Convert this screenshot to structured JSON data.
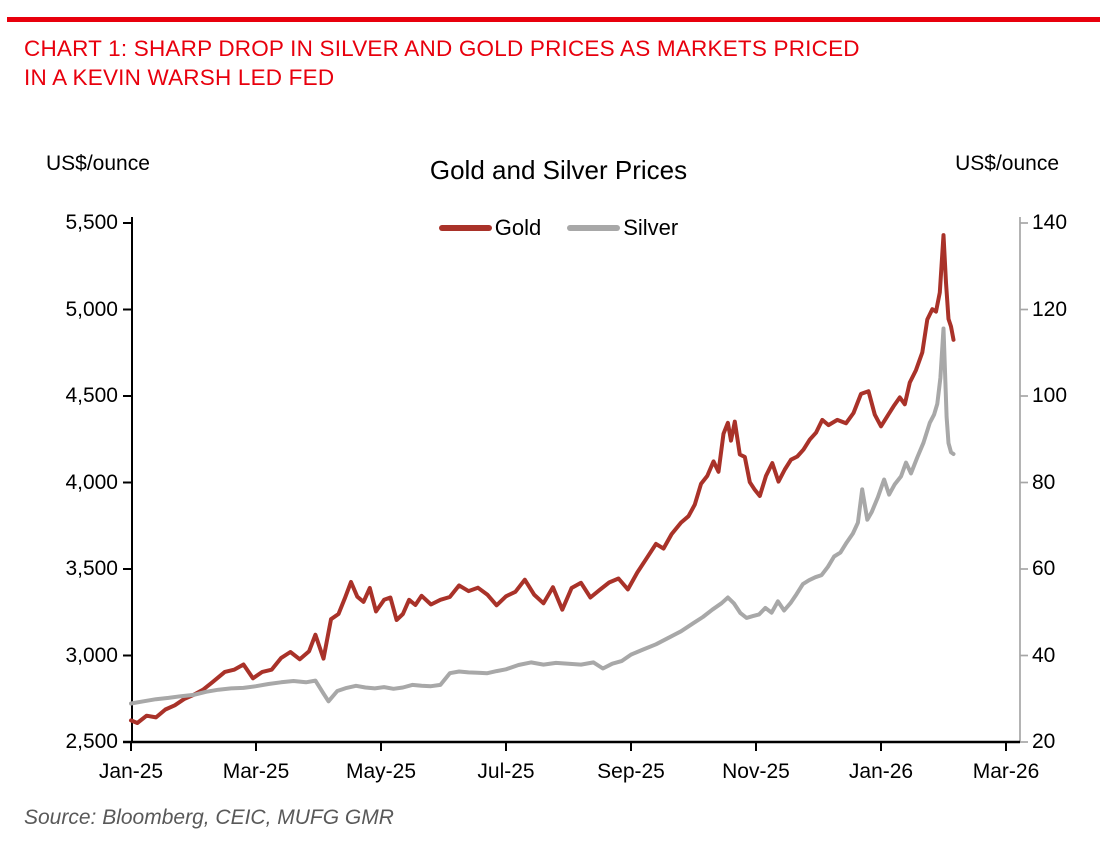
{
  "header": {
    "title_line1": "CHART 1: SHARP DROP IN SILVER AND GOLD PRICES AS MARKETS PRICED",
    "title_line2": "IN A KEVIN WARSH LED FED",
    "accent_color": "#E8000D"
  },
  "source_note": "Source: Bloomberg, CEIC, MUFG GMR",
  "chart_data": {
    "type": "line",
    "title": "Gold and Silver Prices",
    "grid": "off",
    "legend_position": "top-center",
    "y_left_axis": {
      "unit_label": "US$/ounce",
      "ylim": [
        2500,
        5500
      ],
      "tick_values": [
        2500,
        3000,
        3500,
        4000,
        4500,
        5000,
        5500
      ],
      "tick_labels": [
        "2,500",
        "3,000",
        "3,500",
        "4,000",
        "4,500",
        "5,000",
        "5,500"
      ],
      "axis_color": "#000000"
    },
    "y_right_axis": {
      "unit_label": "US$/ounce",
      "ylim": [
        20,
        140
      ],
      "tick_values": [
        20,
        40,
        60,
        80,
        100,
        120,
        140
      ],
      "tick_labels": [
        "20",
        "40",
        "60",
        "80",
        "100",
        "120",
        "140"
      ],
      "axis_color": "#A6A6A6"
    },
    "x_axis": {
      "xlim_months": [
        0,
        14
      ],
      "tick_month_positions": [
        0,
        2,
        4,
        6,
        8,
        10,
        12,
        14
      ],
      "tick_labels": [
        "Jan-25",
        "Mar-25",
        "May-25",
        "Jul-25",
        "Sep-25",
        "Nov-25",
        "Jan-26",
        "Mar-26"
      ],
      "axis_color": "#000000"
    },
    "series": [
      {
        "name": "Gold",
        "axis": "left",
        "color": "#A93229",
        "points": [
          [
            0,
            2625
          ],
          [
            0.1,
            2610
          ],
          [
            0.25,
            2652
          ],
          [
            0.4,
            2642
          ],
          [
            0.55,
            2688
          ],
          [
            0.7,
            2712
          ],
          [
            0.85,
            2748
          ],
          [
            1,
            2772
          ],
          [
            1.15,
            2802
          ],
          [
            1.3,
            2845
          ],
          [
            1.5,
            2905
          ],
          [
            1.65,
            2918
          ],
          [
            1.8,
            2948
          ],
          [
            1.95,
            2868
          ],
          [
            2.1,
            2905
          ],
          [
            2.25,
            2918
          ],
          [
            2.4,
            2985
          ],
          [
            2.55,
            3020
          ],
          [
            2.7,
            2978
          ],
          [
            2.85,
            3025
          ],
          [
            2.95,
            3120
          ],
          [
            3.08,
            2982
          ],
          [
            3.2,
            3210
          ],
          [
            3.32,
            3240
          ],
          [
            3.42,
            3330
          ],
          [
            3.52,
            3425
          ],
          [
            3.62,
            3340
          ],
          [
            3.72,
            3310
          ],
          [
            3.82,
            3390
          ],
          [
            3.92,
            3255
          ],
          [
            4.05,
            3322
          ],
          [
            4.15,
            3335
          ],
          [
            4.25,
            3205
          ],
          [
            4.35,
            3240
          ],
          [
            4.45,
            3322
          ],
          [
            4.55,
            3292
          ],
          [
            4.65,
            3345
          ],
          [
            4.8,
            3295
          ],
          [
            4.95,
            3322
          ],
          [
            5.1,
            3338
          ],
          [
            5.25,
            3405
          ],
          [
            5.4,
            3372
          ],
          [
            5.55,
            3392
          ],
          [
            5.7,
            3352
          ],
          [
            5.85,
            3290
          ],
          [
            6,
            3342
          ],
          [
            6.15,
            3368
          ],
          [
            6.3,
            3438
          ],
          [
            6.45,
            3352
          ],
          [
            6.6,
            3302
          ],
          [
            6.75,
            3395
          ],
          [
            6.9,
            3265
          ],
          [
            7.05,
            3390
          ],
          [
            7.2,
            3420
          ],
          [
            7.35,
            3335
          ],
          [
            7.5,
            3380
          ],
          [
            7.65,
            3422
          ],
          [
            7.8,
            3445
          ],
          [
            7.95,
            3382
          ],
          [
            8.1,
            3480
          ],
          [
            8.25,
            3562
          ],
          [
            8.4,
            3645
          ],
          [
            8.52,
            3618
          ],
          [
            8.65,
            3702
          ],
          [
            8.8,
            3768
          ],
          [
            8.92,
            3805
          ],
          [
            9.02,
            3872
          ],
          [
            9.12,
            3992
          ],
          [
            9.22,
            4038
          ],
          [
            9.32,
            4122
          ],
          [
            9.4,
            4062
          ],
          [
            9.48,
            4282
          ],
          [
            9.55,
            4345
          ],
          [
            9.6,
            4242
          ],
          [
            9.66,
            4352
          ],
          [
            9.74,
            4162
          ],
          [
            9.82,
            4148
          ],
          [
            9.9,
            4002
          ],
          [
            9.98,
            3958
          ],
          [
            10.06,
            3922
          ],
          [
            10.16,
            4038
          ],
          [
            10.26,
            4112
          ],
          [
            10.36,
            4005
          ],
          [
            10.46,
            4075
          ],
          [
            10.56,
            4132
          ],
          [
            10.66,
            4150
          ],
          [
            10.76,
            4190
          ],
          [
            10.86,
            4248
          ],
          [
            10.96,
            4288
          ],
          [
            11.06,
            4362
          ],
          [
            11.16,
            4332
          ],
          [
            11.3,
            4362
          ],
          [
            11.44,
            4342
          ],
          [
            11.56,
            4402
          ],
          [
            11.68,
            4512
          ],
          [
            11.8,
            4528
          ],
          [
            11.9,
            4392
          ],
          [
            12,
            4325
          ],
          [
            12.1,
            4382
          ],
          [
            12.2,
            4440
          ],
          [
            12.3,
            4492
          ],
          [
            12.38,
            4452
          ],
          [
            12.46,
            4578
          ],
          [
            12.56,
            4650
          ],
          [
            12.66,
            4752
          ],
          [
            12.74,
            4942
          ],
          [
            12.82,
            5002
          ],
          [
            12.88,
            4988
          ],
          [
            12.94,
            5098
          ],
          [
            13,
            5430
          ],
          [
            13.04,
            5155
          ],
          [
            13.08,
            4945
          ],
          [
            13.12,
            4902
          ],
          [
            13.16,
            4825
          ]
        ]
      },
      {
        "name": "Silver",
        "axis": "right",
        "color": "#A8A8A8",
        "points": [
          [
            0,
            28.9
          ],
          [
            0.2,
            29.4
          ],
          [
            0.4,
            29.9
          ],
          [
            0.6,
            30.2
          ],
          [
            0.8,
            30.6
          ],
          [
            1,
            30.9
          ],
          [
            1.2,
            31.6
          ],
          [
            1.4,
            32.1
          ],
          [
            1.6,
            32.4
          ],
          [
            1.8,
            32.5
          ],
          [
            2,
            32.9
          ],
          [
            2.2,
            33.4
          ],
          [
            2.4,
            33.8
          ],
          [
            2.6,
            34.1
          ],
          [
            2.8,
            33.8
          ],
          [
            2.95,
            34.2
          ],
          [
            3.08,
            31.2
          ],
          [
            3.16,
            29.4
          ],
          [
            3.3,
            31.8
          ],
          [
            3.45,
            32.5
          ],
          [
            3.6,
            33
          ],
          [
            3.75,
            32.6
          ],
          [
            3.9,
            32.4
          ],
          [
            4.05,
            32.7
          ],
          [
            4.2,
            32.3
          ],
          [
            4.35,
            32.6
          ],
          [
            4.5,
            33.2
          ],
          [
            4.65,
            33
          ],
          [
            4.8,
            32.9
          ],
          [
            4.95,
            33.2
          ],
          [
            5.1,
            35.9
          ],
          [
            5.25,
            36.3
          ],
          [
            5.4,
            36.1
          ],
          [
            5.55,
            36
          ],
          [
            5.7,
            35.9
          ],
          [
            5.85,
            36.4
          ],
          [
            6,
            36.8
          ],
          [
            6.2,
            37.8
          ],
          [
            6.4,
            38.4
          ],
          [
            6.6,
            37.9
          ],
          [
            6.8,
            38.3
          ],
          [
            7,
            38.1
          ],
          [
            7.2,
            37.9
          ],
          [
            7.4,
            38.4
          ],
          [
            7.55,
            37
          ],
          [
            7.7,
            38.1
          ],
          [
            7.85,
            38.7
          ],
          [
            8,
            40.2
          ],
          [
            8.2,
            41.4
          ],
          [
            8.4,
            42.6
          ],
          [
            8.6,
            44.1
          ],
          [
            8.8,
            45.6
          ],
          [
            9,
            47.5
          ],
          [
            9.15,
            48.9
          ],
          [
            9.3,
            50.6
          ],
          [
            9.45,
            52.1
          ],
          [
            9.55,
            53.4
          ],
          [
            9.65,
            52
          ],
          [
            9.75,
            49.8
          ],
          [
            9.85,
            48.7
          ],
          [
            9.95,
            49.1
          ],
          [
            10.05,
            49.5
          ],
          [
            10.15,
            51
          ],
          [
            10.25,
            49.9
          ],
          [
            10.35,
            52.5
          ],
          [
            10.45,
            50.4
          ],
          [
            10.55,
            52.1
          ],
          [
            10.65,
            54.2
          ],
          [
            10.75,
            56.5
          ],
          [
            10.85,
            57.4
          ],
          [
            10.95,
            58.1
          ],
          [
            11.05,
            58.6
          ],
          [
            11.15,
            60.5
          ],
          [
            11.25,
            62.9
          ],
          [
            11.35,
            63.8
          ],
          [
            11.45,
            66.1
          ],
          [
            11.55,
            68.2
          ],
          [
            11.63,
            70.7
          ],
          [
            11.7,
            78.4
          ],
          [
            11.78,
            71.4
          ],
          [
            11.85,
            73.1
          ],
          [
            11.95,
            76.6
          ],
          [
            12.05,
            80.7
          ],
          [
            12.13,
            77.2
          ],
          [
            12.22,
            79.6
          ],
          [
            12.32,
            81.4
          ],
          [
            12.4,
            84.6
          ],
          [
            12.48,
            82.1
          ],
          [
            12.58,
            85.8
          ],
          [
            12.68,
            89.2
          ],
          [
            12.78,
            93.8
          ],
          [
            12.85,
            95.7
          ],
          [
            12.9,
            98.2
          ],
          [
            12.95,
            104.2
          ],
          [
            13,
            115.6
          ],
          [
            13.05,
            95.2
          ],
          [
            13.08,
            89.1
          ],
          [
            13.12,
            87
          ],
          [
            13.16,
            86.6
          ]
        ]
      }
    ]
  }
}
